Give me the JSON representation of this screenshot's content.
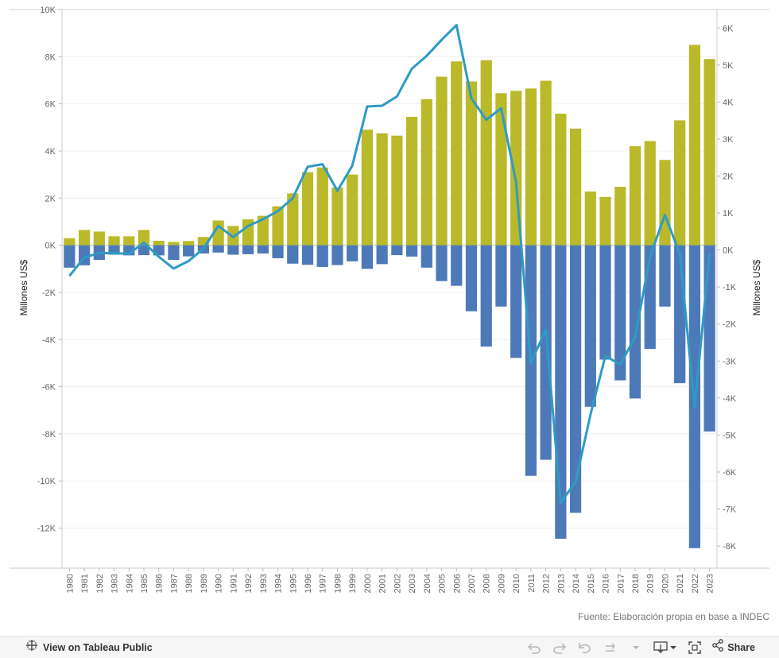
{
  "chart_data": {
    "type": "bar",
    "x": [
      1980,
      1981,
      1982,
      1983,
      1984,
      1985,
      1986,
      1987,
      1988,
      1989,
      1990,
      1991,
      1992,
      1993,
      1994,
      1995,
      1996,
      1997,
      1998,
      1999,
      2000,
      2001,
      2002,
      2003,
      2004,
      2005,
      2006,
      2007,
      2008,
      2009,
      2010,
      2011,
      2012,
      2013,
      2014,
      2015,
      2016,
      2017,
      2018,
      2019,
      2020,
      2021,
      2022,
      2023
    ],
    "x_tick_labels": [
      "1980",
      "1981",
      "1982",
      "1983",
      "1984",
      "1985",
      "1986",
      "1987",
      "1988",
      "1989",
      "1990",
      "1991",
      "1992",
      "1993",
      "1994",
      "1995",
      "1996",
      "1997",
      "1998",
      "1999",
      "2000",
      "2001",
      "2002",
      "2003",
      "2004",
      "2005",
      "2006",
      "2007",
      "2008",
      "2009",
      "2010",
      "2011",
      "2012",
      "2013",
      "2014",
      "2015",
      "2016",
      "2017",
      "2018",
      "2019",
      "2020",
      "2021",
      "2022",
      "2023"
    ],
    "series": [
      {
        "type": "bar",
        "axis": "left",
        "color": "#b9b92a",
        "values": [
          300,
          650,
          580,
          380,
          380,
          650,
          190,
          140,
          180,
          350,
          1050,
          820,
          1100,
          1250,
          1650,
          2200,
          3100,
          3300,
          2450,
          3000,
          4900,
          4750,
          4650,
          5450,
          6200,
          7150,
          7800,
          6950,
          7850,
          6450,
          6550,
          6650,
          6980,
          5580,
          4950,
          2280,
          2050,
          2480,
          4200,
          4420,
          3620,
          5300,
          8500,
          7900
        ]
      },
      {
        "type": "bar",
        "axis": "left",
        "color": "#4e79b8",
        "values": [
          -950,
          -850,
          -620,
          -400,
          -430,
          -420,
          -430,
          -620,
          -470,
          -350,
          -310,
          -400,
          -380,
          -350,
          -550,
          -780,
          -830,
          -920,
          -840,
          -680,
          -1000,
          -800,
          -420,
          -480,
          -950,
          -1520,
          -1720,
          -2800,
          -4300,
          -2600,
          -4780,
          -9780,
          -9100,
          -12450,
          -11350,
          -6850,
          -4850,
          -5730,
          -6500,
          -4400,
          -2600,
          -5850,
          -12850,
          -7900
        ]
      },
      {
        "type": "line",
        "axis": "right",
        "color": "#2e9bc4",
        "values": [
          -700,
          -200,
          -80,
          -90,
          -100,
          200,
          -180,
          -500,
          -300,
          40,
          650,
          350,
          650,
          830,
          1050,
          1400,
          2250,
          2320,
          1600,
          2280,
          3880,
          3900,
          4150,
          4900,
          5250,
          5680,
          6080,
          4100,
          3520,
          3830,
          1840,
          -3050,
          -2150,
          -6830,
          -6270,
          -4450,
          -2860,
          -3100,
          -2350,
          -180,
          950,
          -100,
          -4250,
          -100
        ]
      }
    ],
    "y_left": {
      "label": "Millones US$",
      "range": [
        -13700,
        10000
      ],
      "ticks": [
        10000,
        8000,
        6000,
        4000,
        2000,
        0,
        -2000,
        -4000,
        -6000,
        -8000,
        -10000,
        -12000
      ],
      "tick_labels": [
        "10K",
        "8K",
        "6K",
        "4K",
        "2K",
        "0K",
        "-2K",
        "-4K",
        "-6K",
        "-8K",
        "-10K",
        "-12K"
      ]
    },
    "y_right": {
      "label": "Millones US$",
      "range": [
        -8600,
        6500
      ],
      "ticks": [
        6000,
        5000,
        4000,
        3000,
        2000,
        1000,
        0,
        -1000,
        -2000,
        -3000,
        -4000,
        -5000,
        -6000,
        -7000,
        -8000
      ],
      "tick_labels": [
        "6K",
        "5K",
        "4K",
        "3K",
        "2K",
        "1K",
        "0K",
        "-1K",
        "-2K",
        "-3K",
        "-4K",
        "-5K",
        "-6K",
        "-7K",
        "-8K"
      ]
    },
    "grid": true,
    "legend": "none"
  },
  "source_note": "Fuente: Elaboración propia en base a INDEC",
  "toolbar": {
    "view_label": "View on Tableau Public",
    "share_label": "Share",
    "icons": [
      "tableau-logo-icon",
      "undo-icon",
      "redo-icon",
      "revert-icon",
      "refresh-icon",
      "download-icon",
      "fullscreen-icon",
      "share-icon"
    ]
  }
}
